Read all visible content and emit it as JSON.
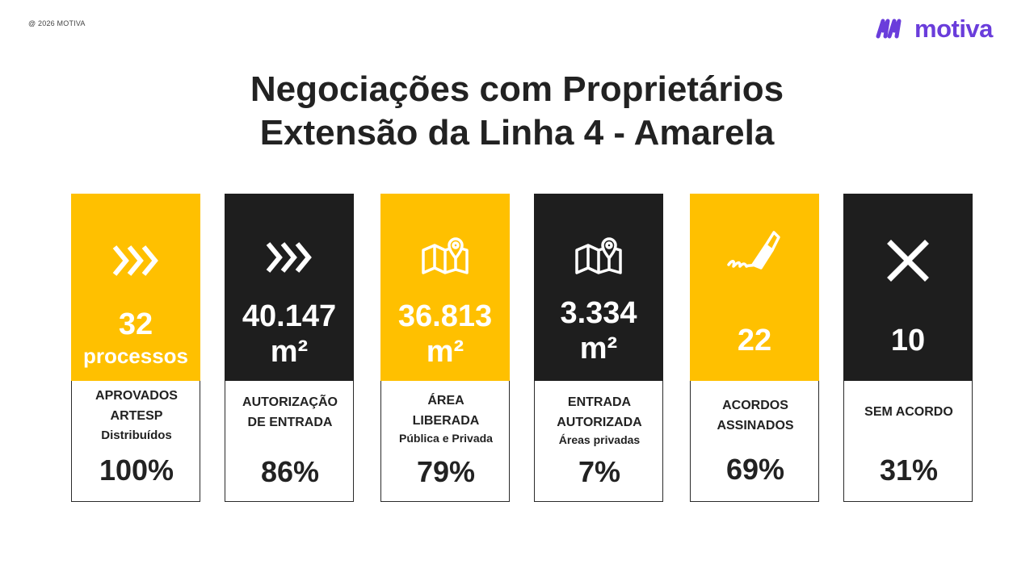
{
  "copyright": "@ 2026 MOTIVA",
  "logo": {
    "text": "motiva",
    "color": "#6A3DDB"
  },
  "title": {
    "line1": "Negociações com Proprietários",
    "line2": "Extensão da Linha 4 - Amarela"
  },
  "colors": {
    "yellow": "#FFC000",
    "dark": "#1E1E1E"
  },
  "cards": [
    {
      "icon": "chevrons-right-icon",
      "value": "32",
      "unit": "processos",
      "label_lines": [
        "APROVADOS",
        "ARTESP"
      ],
      "sub": "Distribuídos",
      "percent": "100%"
    },
    {
      "icon": "chevrons-right-icon",
      "value": "40.147",
      "unit": "m²",
      "label_lines": [
        "AUTORIZAÇÃO",
        "DE ENTRADA"
      ],
      "sub": "",
      "percent": "86%"
    },
    {
      "icon": "map-pin-icon",
      "value": "36.813",
      "unit": "m²",
      "label_lines": [
        "ÁREA",
        "LIBERADA"
      ],
      "sub": "Pública e Privada",
      "percent": "79%"
    },
    {
      "icon": "map-pin-icon",
      "value": "3.334",
      "unit": "m²",
      "label_lines": [
        "ENTRADA",
        "AUTORIZADA"
      ],
      "sub": "Áreas privadas",
      "percent": "7%"
    },
    {
      "icon": "signature-pen-icon",
      "value": "22",
      "unit": "",
      "label_lines": [
        "ACORDOS",
        "ASSINADOS"
      ],
      "sub": "",
      "percent": "69%"
    },
    {
      "icon": "close-x-icon",
      "value": "10",
      "unit": "",
      "label_lines": [
        "SEM ACORDO"
      ],
      "sub": "",
      "percent": "31%"
    }
  ]
}
